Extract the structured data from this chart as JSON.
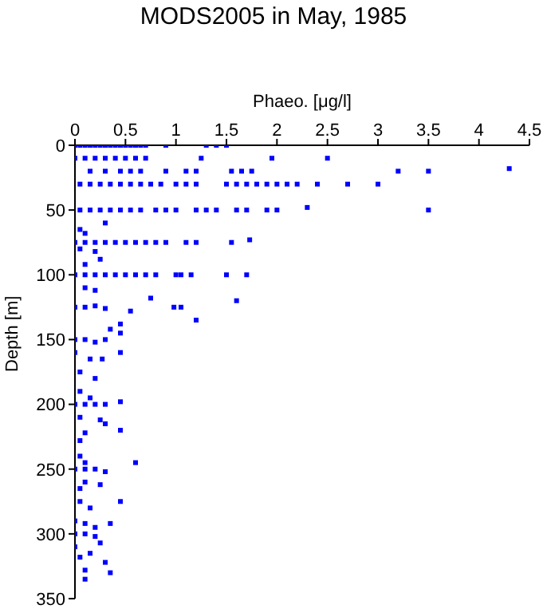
{
  "chart_data": {
    "type": "scatter",
    "title": "MODS2005 in May, 1985",
    "xlabel": "Phaeo. [μg/l]",
    "ylabel": "Depth [m]",
    "x": [
      0,
      0.05,
      0.1,
      0.15,
      0.2,
      0.25,
      0.3,
      0.35,
      0.4,
      0.45,
      0.5,
      0.55,
      0.6,
      0.65,
      0.7,
      0.9,
      1.3,
      1.4,
      1.5,
      0,
      0.1,
      0.2,
      0.3,
      0.4,
      0.5,
      0.6,
      0.7,
      1.25,
      1.95,
      2.5,
      0.15,
      0.3,
      0.45,
      0.55,
      0.65,
      0.9,
      1.1,
      1.2,
      1.55,
      1.65,
      1.75,
      3.2,
      3.5,
      4.3,
      0.05,
      0.15,
      0.25,
      0.35,
      0.45,
      0.55,
      0.65,
      0.75,
      0.85,
      1.0,
      1.1,
      1.2,
      1.5,
      1.6,
      1.7,
      1.8,
      1.9,
      2.0,
      2.1,
      2.2,
      2.4,
      2.7,
      3.0,
      0.05,
      0.15,
      0.25,
      0.35,
      0.45,
      0.55,
      0.65,
      0.8,
      0.9,
      1.0,
      1.2,
      1.3,
      1.4,
      1.6,
      1.7,
      1.9,
      2.0,
      2.3,
      3.5,
      0,
      0.1,
      0.2,
      0.3,
      0.4,
      0.5,
      0.6,
      0.7,
      0.8,
      0.9,
      1.1,
      1.2,
      1.55,
      1.73,
      0,
      0.1,
      0.2,
      0.3,
      0.4,
      0.5,
      0.6,
      0.7,
      0.8,
      1.0,
      1.05,
      1.15,
      1.5,
      1.7,
      0.05,
      0.1,
      0.05,
      0.2,
      0.25,
      0.1,
      0.3,
      0.75,
      1.6,
      0,
      0.1,
      0.2,
      0.3,
      0.55,
      0.98,
      1.05,
      1.2,
      0.45,
      0.1,
      0.2,
      0.35,
      0.45,
      0,
      0.1,
      0.2,
      0.3,
      0,
      0.15,
      0.27,
      0.45,
      0.05,
      0.2,
      0.05,
      0.15,
      0,
      0.1,
      0.2,
      0.3,
      0.45,
      0.05,
      0.25,
      0.45,
      0.1,
      0.3,
      0.05,
      0.05,
      0.1,
      0,
      0.1,
      0.2,
      0.3,
      0.6,
      0.1,
      0.25,
      0.05,
      0.45,
      0.15,
      0.05,
      0,
      0.1,
      0.2,
      0,
      0.1,
      0.2,
      0.35,
      0,
      0.15,
      0.25,
      0.05,
      0.3,
      0.1,
      0.35,
      0.1
    ],
    "series": [
      {
        "color": "#0000ff",
        "values": [
          0,
          0,
          0,
          0,
          0,
          0,
          0,
          0,
          0,
          0,
          0,
          0,
          0,
          0,
          0,
          0,
          0,
          0,
          0,
          10,
          10,
          10,
          10,
          10,
          10,
          10,
          10,
          10,
          10,
          10,
          20,
          20,
          20,
          20,
          20,
          20,
          20,
          20,
          20,
          20,
          20,
          20,
          20,
          18,
          30,
          30,
          30,
          30,
          30,
          30,
          30,
          30,
          30,
          30,
          30,
          30,
          30,
          30,
          30,
          30,
          30,
          30,
          30,
          30,
          30,
          30,
          30,
          50,
          50,
          50,
          50,
          50,
          50,
          50,
          50,
          50,
          50,
          50,
          50,
          50,
          50,
          50,
          50,
          50,
          48,
          50,
          75,
          75,
          75,
          75,
          75,
          75,
          75,
          75,
          75,
          75,
          75,
          75,
          75,
          73,
          100,
          100,
          100,
          100,
          100,
          100,
          100,
          100,
          100,
          100,
          100,
          100,
          100,
          100,
          65,
          68,
          80,
          82,
          88,
          92,
          60,
          118,
          120,
          125,
          125,
          124,
          126,
          128,
          125,
          125,
          135,
          138,
          110,
          112,
          142,
          145,
          150,
          150,
          152,
          150,
          160,
          165,
          165,
          160,
          175,
          180,
          190,
          195,
          200,
          200,
          200,
          200,
          198,
          210,
          212,
          220,
          222,
          215,
          228,
          240,
          245,
          250,
          250,
          250,
          252,
          245,
          260,
          262,
          275,
          275,
          280,
          265,
          290,
          292,
          295,
          300,
          300,
          302,
          292,
          310,
          315,
          307,
          318,
          322,
          328,
          330,
          335
        ]
      }
    ],
    "xlim": [
      0,
      4.5
    ],
    "xticks": [
      0,
      0.5,
      1,
      1.5,
      2,
      2.5,
      3,
      3.5,
      4,
      4.5
    ],
    "ylim": [
      350,
      0
    ],
    "yticks": [
      0,
      50,
      100,
      150,
      200,
      250,
      300,
      350
    ],
    "marker": "square",
    "grid": false,
    "legend": false
  }
}
